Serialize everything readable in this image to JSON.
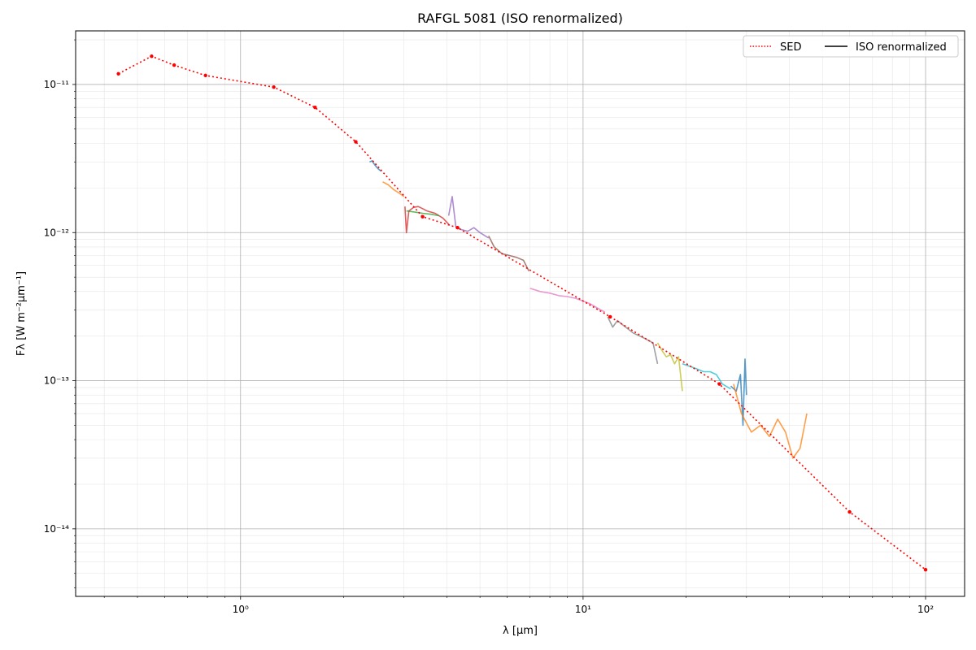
{
  "chart_data": {
    "type": "line",
    "title": "RAFGL 5081 (ISO renormalized)",
    "xlabel": "λ [μm]",
    "ylabel": "Fλ [W m⁻²μm⁻¹]",
    "xscale": "log",
    "yscale": "log",
    "xlim": [
      0.33,
      130
    ],
    "ylim": [
      3.5e-15,
      2.3e-11
    ],
    "grid": true,
    "legend": {
      "placement": "top-right",
      "entries": [
        "SED",
        "ISO renormalized"
      ]
    },
    "x_tick_labels": [
      "10⁰",
      "10¹",
      "10²"
    ],
    "x_ticks": [
      1,
      10,
      100
    ],
    "y_tick_labels": [
      "10⁻¹⁴",
      "10⁻¹³",
      "10⁻¹²",
      "10⁻¹¹"
    ],
    "y_ticks": [
      1e-14,
      1e-13,
      1e-12,
      1e-11
    ],
    "sed": {
      "name": "SED",
      "color": "#ff0000",
      "x": [
        0.44,
        0.55,
        0.64,
        0.79,
        1.25,
        1.65,
        2.17,
        3.4,
        4.3,
        12,
        25,
        60,
        100
      ],
      "y": [
        1.18e-11,
        1.55e-11,
        1.35e-11,
        1.15e-11,
        9.6e-12,
        7e-12,
        4.1e-12,
        1.28e-12,
        1.08e-12,
        2.7e-13,
        9.5e-14,
        1.3e-14,
        5.3e-15
      ]
    },
    "iso_segments": [
      {
        "color": "#1f77b4",
        "x": [
          2.38,
          2.42,
          2.47,
          2.52,
          2.57
        ],
        "y": [
          3e-12,
          3.05e-12,
          2.85e-12,
          2.7e-12,
          2.6e-12
        ]
      },
      {
        "color": "#ff7f0e",
        "x": [
          2.6,
          2.7,
          2.8,
          2.9,
          3.0
        ],
        "y": [
          2.2e-12,
          2.1e-12,
          1.95e-12,
          1.85e-12,
          1.75e-12
        ]
      },
      {
        "color": "#d62728",
        "x": [
          3.02,
          3.05,
          3.1,
          3.2,
          3.3,
          3.4,
          3.5,
          3.7,
          3.9,
          4.08
        ],
        "y": [
          1.5e-12,
          1e-12,
          1.4e-12,
          1.48e-12,
          1.5e-12,
          1.45e-12,
          1.4e-12,
          1.35e-12,
          1.25e-12,
          1.12e-12
        ]
      },
      {
        "color": "#2ca02c",
        "x": [
          3.05,
          3.2,
          3.4,
          3.6,
          3.8
        ],
        "y": [
          1.4e-12,
          1.38e-12,
          1.35e-12,
          1.33e-12,
          1.3e-12
        ]
      },
      {
        "color": "#9467bd",
        "x": [
          4.05,
          4.15,
          4.25,
          4.4,
          4.6,
          4.8,
          5.0,
          5.3
        ],
        "y": [
          1.3e-12,
          1.75e-12,
          1.1e-12,
          1.05e-12,
          1.02e-12,
          1.08e-12,
          1e-12,
          9.2e-13
        ]
      },
      {
        "color": "#8c564b",
        "x": [
          5.3,
          5.5,
          5.8,
          6.1,
          6.4,
          6.7,
          6.95
        ],
        "y": [
          9.5e-13,
          8e-13,
          7.2e-13,
          7e-13,
          6.8e-13,
          6.5e-13,
          5.5e-13
        ]
      },
      {
        "color": "#e377c2",
        "x": [
          7.0,
          7.5,
          8.0,
          8.5,
          9.0,
          9.5,
          10.0,
          10.5,
          11.0,
          11.6
        ],
        "y": [
          4.2e-13,
          4e-13,
          3.9e-13,
          3.75e-13,
          3.7e-13,
          3.6e-13,
          3.45e-13,
          3.3e-13,
          3.1e-13,
          2.9e-13
        ]
      },
      {
        "color": "#7f7f7f",
        "x": [
          11.8,
          12.2,
          12.6,
          13.0,
          14.0,
          15.0,
          16.0,
          16.5
        ],
        "y": [
          2.7e-13,
          2.3e-13,
          2.55e-13,
          2.4e-13,
          2.1e-13,
          1.95e-13,
          1.8e-13,
          1.3e-13
        ]
      },
      {
        "color": "#bcbd22",
        "x": [
          16.5,
          17.0,
          17.5,
          18.0,
          18.5,
          19.0,
          19.5
        ],
        "y": [
          1.8e-13,
          1.6e-13,
          1.45e-13,
          1.5e-13,
          1.3e-13,
          1.45e-13,
          8.5e-14
        ]
      },
      {
        "color": "#17becf",
        "x": [
          19.5,
          20.5,
          21.5,
          22.5,
          23.5,
          24.5,
          25.5,
          27.0
        ],
        "y": [
          1.3e-13,
          1.25e-13,
          1.2e-13,
          1.15e-13,
          1.15e-13,
          1.1e-13,
          9.5e-14,
          8.8e-14
        ]
      },
      {
        "color": "#1f77b4",
        "x": [
          27.0,
          28.0,
          28.8,
          29.3,
          29.7,
          30.0
        ],
        "y": [
          9.2e-14,
          8.5e-14,
          1.1e-13,
          5e-14,
          1.4e-13,
          8e-14
        ]
      },
      {
        "color": "#ff7f0e",
        "x": [
          27.5,
          29.0,
          31.0,
          33.0,
          35.0,
          37.0,
          39.0,
          41.0,
          43.0,
          45.0
        ],
        "y": [
          9.5e-14,
          6e-14,
          4.5e-14,
          5e-14,
          4.2e-14,
          5.5e-14,
          4.5e-14,
          3e-14,
          3.5e-14,
          6e-14
        ]
      }
    ]
  }
}
